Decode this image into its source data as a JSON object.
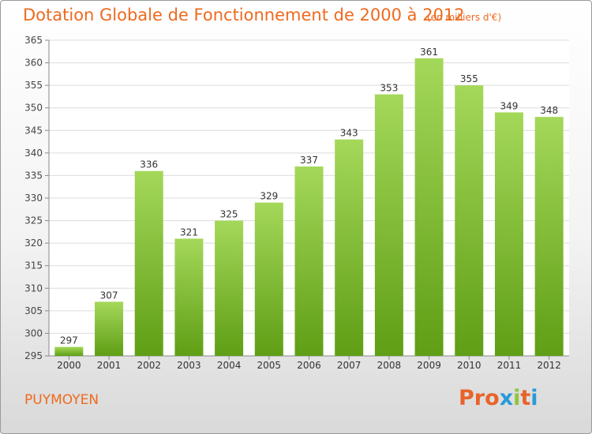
{
  "header": {
    "title": "Dotation Globale de Fonctionnement de 2000 à 2012",
    "subtitle": "(en milliers d'€)"
  },
  "footer": {
    "commune": "PUYMOYEN",
    "logo_text": "Proxiti",
    "logo_colors": [
      "#e8632a",
      "#e8632a",
      "#e8632a",
      "#2a9ad8",
      "#8cc63f",
      "#e8632a",
      "#2a9ad8"
    ]
  },
  "colors": {
    "accent": "#ee6a1f",
    "bar_light": "#a4d85a",
    "bar_dark": "#5f9e15"
  },
  "chart_data": {
    "type": "bar",
    "categories": [
      "2000",
      "2001",
      "2002",
      "2003",
      "2004",
      "2005",
      "2006",
      "2007",
      "2008",
      "2009",
      "2010",
      "2011",
      "2012"
    ],
    "values": [
      297,
      307,
      336,
      321,
      325,
      329,
      337,
      343,
      353,
      361,
      355,
      349,
      348
    ],
    "ylim": [
      295,
      365
    ],
    "yticks": [
      295,
      300,
      305,
      310,
      315,
      320,
      325,
      330,
      335,
      340,
      345,
      350,
      355,
      360,
      365
    ],
    "grid": true
  }
}
